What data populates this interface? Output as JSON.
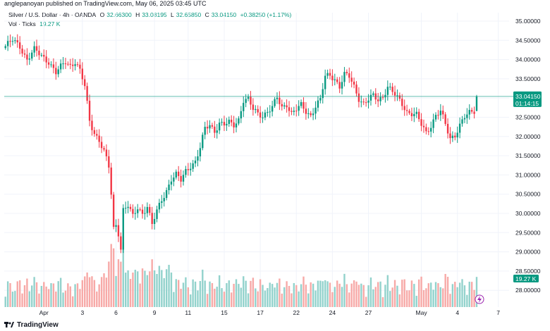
{
  "header": {
    "publisher_line": "anglepanoyan published on TradingView.com, May 06, 2025 03:45 UTC"
  },
  "legend": {
    "symbol": "Silver / U.S. Dollar · 4h · OANDA",
    "open_label": "O",
    "open": "32.66300",
    "high_label": "H",
    "high": "33.08195",
    "low_label": "L",
    "low": "32.65850",
    "close_label": "C",
    "close": "33.04150",
    "change": "+0.38250 (+1.17%)",
    "volume_label": "Vol · Ticks",
    "volume": "19.27 K"
  },
  "price_badge": {
    "price": "33.04150",
    "countdown": "01:14:15",
    "color": "#089981"
  },
  "volume_badge": {
    "value": "19.27 K",
    "color": "#089981"
  },
  "footer": {
    "brand": "TradingView"
  },
  "colors": {
    "up": "#089981",
    "down": "#f23645",
    "up_volume": "#92d2cc",
    "down_volume": "#f7a9a7",
    "grid": "#f0f3fa",
    "last_price_line": "#089981"
  },
  "chart_data": {
    "type": "candlestick",
    "symbol": "XAGUSD",
    "timeframe": "4h",
    "y_axis": {
      "ticks": [
        "35.00000",
        "34.50000",
        "34.00000",
        "33.50000",
        "33.00000",
        "32.50000",
        "32.00000",
        "31.50000",
        "31.00000",
        "30.50000",
        "30.00000",
        "29.50000",
        "29.00000",
        "28.50000",
        "28.00000"
      ],
      "range": [
        27.8,
        35.2
      ]
    },
    "x_axis": {
      "ticks": [
        {
          "label": "Apr",
          "index": 16
        },
        {
          "label": "3",
          "index": 32
        },
        {
          "label": "6",
          "index": 46
        },
        {
          "label": "9",
          "index": 62
        },
        {
          "label": "11",
          "index": 76
        },
        {
          "label": "15",
          "index": 91
        },
        {
          "label": "17",
          "index": 106
        },
        {
          "label": "22",
          "index": 121
        },
        {
          "label": "24",
          "index": 136
        },
        {
          "label": "27",
          "index": 151
        },
        {
          "label": "May",
          "index": 173
        },
        {
          "label": "4",
          "index": 188
        },
        {
          "label": "7",
          "index": 205
        }
      ],
      "count": 210
    },
    "keypoints": [
      [
        0,
        34.35
      ],
      [
        3,
        34.5
      ],
      [
        6,
        34.35
      ],
      [
        9,
        34.0
      ],
      [
        12,
        34.25
      ],
      [
        15,
        34.1
      ],
      [
        18,
        33.95
      ],
      [
        21,
        33.65
      ],
      [
        23,
        33.8
      ],
      [
        25,
        33.95
      ],
      [
        27,
        33.85
      ],
      [
        29,
        33.95
      ],
      [
        31,
        33.7
      ],
      [
        33,
        33.3
      ],
      [
        35,
        32.4
      ],
      [
        37,
        32.1
      ],
      [
        39,
        31.9
      ],
      [
        41,
        31.6
      ],
      [
        43,
        31.2
      ],
      [
        44,
        30.5
      ],
      [
        45,
        29.6
      ],
      [
        46,
        29.7
      ],
      [
        47,
        29.5
      ],
      [
        48,
        29.1
      ],
      [
        49,
        30.1
      ],
      [
        51,
        30.2
      ],
      [
        53,
        29.9
      ],
      [
        55,
        30.15
      ],
      [
        57,
        30.0
      ],
      [
        59,
        30.2
      ],
      [
        61,
        29.7
      ],
      [
        63,
        30.05
      ],
      [
        65,
        30.35
      ],
      [
        67,
        30.6
      ],
      [
        69,
        30.9
      ],
      [
        71,
        31.0
      ],
      [
        73,
        30.85
      ],
      [
        75,
        31.1
      ],
      [
        77,
        31.25
      ],
      [
        79,
        31.35
      ],
      [
        81,
        31.7
      ],
      [
        83,
        32.2
      ],
      [
        85,
        32.3
      ],
      [
        87,
        32.15
      ],
      [
        89,
        32.35
      ],
      [
        91,
        32.3
      ],
      [
        93,
        32.35
      ],
      [
        95,
        32.3
      ],
      [
        97,
        32.45
      ],
      [
        99,
        32.95
      ],
      [
        101,
        32.95
      ],
      [
        103,
        32.7
      ],
      [
        105,
        32.6
      ],
      [
        107,
        32.55
      ],
      [
        109,
        32.65
      ],
      [
        111,
        32.75
      ],
      [
        113,
        33.0
      ],
      [
        115,
        32.75
      ],
      [
        117,
        32.85
      ],
      [
        119,
        32.6
      ],
      [
        121,
        32.7
      ],
      [
        123,
        32.8
      ],
      [
        125,
        32.65
      ],
      [
        127,
        32.55
      ],
      [
        129,
        32.8
      ],
      [
        131,
        32.95
      ],
      [
        133,
        33.55
      ],
      [
        135,
        33.6
      ],
      [
        137,
        33.5
      ],
      [
        139,
        33.3
      ],
      [
        141,
        33.6
      ],
      [
        143,
        33.55
      ],
      [
        145,
        33.3
      ],
      [
        147,
        33.0
      ],
      [
        149,
        32.85
      ],
      [
        151,
        32.95
      ],
      [
        153,
        33.05
      ],
      [
        155,
        32.95
      ],
      [
        157,
        33.05
      ],
      [
        159,
        33.3
      ],
      [
        161,
        33.15
      ],
      [
        163,
        33.0
      ],
      [
        165,
        32.85
      ],
      [
        167,
        32.65
      ],
      [
        169,
        32.6
      ],
      [
        171,
        32.55
      ],
      [
        173,
        32.3
      ],
      [
        175,
        32.1
      ],
      [
        177,
        32.3
      ],
      [
        179,
        32.55
      ],
      [
        181,
        32.65
      ],
      [
        183,
        32.3
      ],
      [
        185,
        31.95
      ],
      [
        187,
        32.05
      ],
      [
        189,
        32.3
      ],
      [
        191,
        32.5
      ],
      [
        193,
        32.6
      ],
      [
        195,
        32.66
      ],
      [
        196,
        33.04
      ]
    ],
    "last": {
      "open": 32.663,
      "high": 33.08195,
      "low": 32.6585,
      "close": 33.0415
    }
  }
}
